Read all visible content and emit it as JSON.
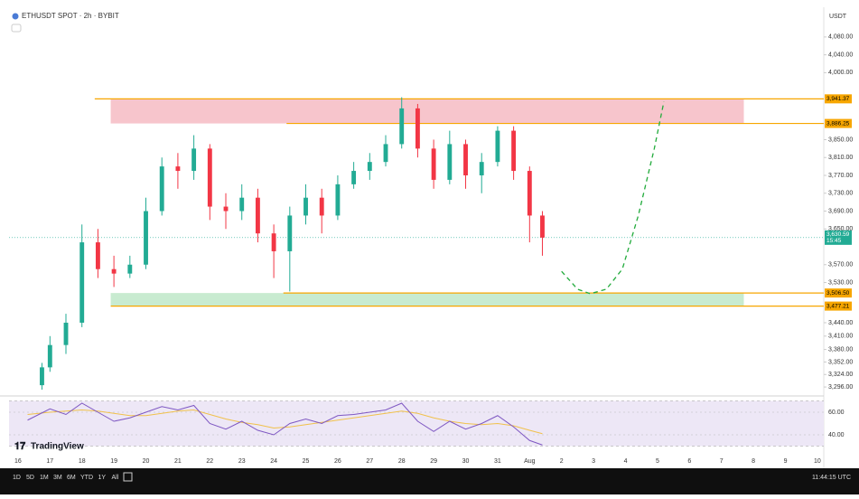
{
  "ui": {
    "symbol": "ETHUSDT SPOT · 2h · BYBIT",
    "currency": "USDT",
    "brand": "TradingView",
    "ranges": [
      "1D",
      "5D",
      "1M",
      "3M",
      "6M",
      "YTD",
      "1Y",
      "All"
    ],
    "clock": "11:44:15 UTC"
  },
  "chart_data": [
    {
      "type": "candlestick",
      "x": [
        16.75,
        17,
        17.5,
        18,
        18.5,
        19,
        19.5,
        20,
        20.5,
        21,
        21.5,
        22,
        22.5,
        23,
        23.5,
        24,
        24.5,
        25,
        25.5,
        26,
        26.5,
        27,
        27.5,
        28,
        28.5,
        29,
        29.5,
        30,
        30.5,
        31,
        31.5,
        32,
        32.4
      ],
      "open": [
        3300,
        3340,
        3390,
        3440,
        3620,
        3560,
        3550,
        3570,
        3690,
        3790,
        3780,
        3830,
        3700,
        3690,
        3720,
        3640,
        3600,
        3680,
        3720,
        3680,
        3750,
        3780,
        3800,
        3840,
        3920,
        3830,
        3760,
        3840,
        3770,
        3800,
        3870,
        3780,
        3680
      ],
      "high": [
        3350,
        3410,
        3460,
        3660,
        3650,
        3590,
        3590,
        3720,
        3810,
        3820,
        3860,
        3840,
        3730,
        3750,
        3740,
        3660,
        3700,
        3750,
        3740,
        3770,
        3800,
        3820,
        3860,
        3945,
        3930,
        3850,
        3870,
        3850,
        3820,
        3880,
        3880,
        3790,
        3690
      ],
      "low": [
        3290,
        3330,
        3370,
        3430,
        3540,
        3520,
        3540,
        3560,
        3680,
        3740,
        3760,
        3670,
        3650,
        3670,
        3620,
        3540,
        3510,
        3660,
        3640,
        3670,
        3740,
        3760,
        3790,
        3830,
        3810,
        3740,
        3750,
        3740,
        3730,
        3790,
        3760,
        3620,
        3590
      ],
      "close": [
        3340,
        3390,
        3440,
        3620,
        3560,
        3550,
        3570,
        3690,
        3790,
        3780,
        3830,
        3700,
        3690,
        3720,
        3640,
        3600,
        3680,
        3720,
        3680,
        3750,
        3780,
        3800,
        3840,
        3920,
        3830,
        3760,
        3840,
        3770,
        3800,
        3870,
        3780,
        3680,
        3630.59
      ],
      "up_color": "#22ab94",
      "down_color": "#f23645",
      "xlim": [
        15.72,
        41.2
      ],
      "ylim": [
        3280,
        4100
      ],
      "xticks": [
        16,
        17,
        18,
        19,
        20,
        21,
        22,
        23,
        24,
        25,
        26,
        27,
        28,
        29,
        30,
        31,
        {
          "value": 32,
          "label": "Aug"
        },
        {
          "value": 33,
          "label": "2"
        },
        {
          "value": 34,
          "label": "3"
        },
        {
          "value": 35,
          "label": "4"
        },
        {
          "value": 36,
          "label": "5"
        },
        {
          "value": 37,
          "label": "6"
        },
        {
          "value": 38,
          "label": "7"
        },
        {
          "value": 39,
          "label": "8"
        },
        {
          "value": 40,
          "label": "9"
        },
        {
          "value": 41,
          "label": "10"
        }
      ],
      "yticks": [
        {
          "value": 4080,
          "label": "4,080.00"
        },
        {
          "value": 4040,
          "label": "4,040.00"
        },
        {
          "value": 4000,
          "label": "4,000.00"
        },
        {
          "value": 3850,
          "label": "3,850.00"
        },
        {
          "value": 3810,
          "label": "3,810.00"
        },
        {
          "value": 3770,
          "label": "3,770.00"
        },
        {
          "value": 3730,
          "label": "3,730.00"
        },
        {
          "value": 3690,
          "label": "3,690.00"
        },
        {
          "value": 3650,
          "label": "3,650.00"
        },
        {
          "value": 3570,
          "label": "3,570.00"
        },
        {
          "value": 3530,
          "label": "3,530.00"
        },
        {
          "value": 3440,
          "label": "3,440.00"
        },
        {
          "value": 3410,
          "label": "3,410.00"
        },
        {
          "value": 3380,
          "label": "3,380.00"
        },
        {
          "value": 3352,
          "label": "3,352.00"
        },
        {
          "value": 3324,
          "label": "3,324.00"
        },
        {
          "value": 3296,
          "label": "3,296.00"
        }
      ],
      "last_price": {
        "value": 3630.59,
        "label": "3,630.59",
        "countdown": "15:45",
        "color": "#22ab94"
      },
      "levels": [
        {
          "value": 3941.37,
          "label": "3,941.37",
          "x_start": 18.4,
          "color": "#f7a600"
        },
        {
          "value": 3886.25,
          "label": "3,886.25",
          "x_start": 24.4,
          "color": "#f7a600"
        },
        {
          "value": 3506.5,
          "label": "3,506.50",
          "x_start": 24.3,
          "color": "#f7a600"
        },
        {
          "value": 3477.21,
          "label": "3,477.21",
          "x_start": 18.9,
          "color": "#f7a600"
        }
      ],
      "zones": [
        {
          "from": 3886.25,
          "to": 3941.37,
          "x": [
            18.9,
            38.7
          ],
          "color": "#f7c5cc"
        },
        {
          "from": 3477.21,
          "to": 3506.5,
          "x": [
            18.9,
            38.7
          ],
          "color": "#c8ebd0"
        }
      ],
      "projection": {
        "x": [
          33.0,
          33.5,
          33.9,
          34.4,
          34.9,
          35.4,
          35.9,
          36.2
        ],
        "values": [
          3555,
          3515,
          3505,
          3515,
          3560,
          3680,
          3830,
          3935
        ],
        "color": "#22ab3c"
      }
    },
    {
      "type": "line",
      "x": [
        16.3,
        17,
        17.5,
        18,
        18.5,
        19,
        19.5,
        20,
        20.5,
        21,
        21.5,
        22,
        22.5,
        23,
        23.5,
        24,
        24.5,
        25,
        25.5,
        26,
        26.5,
        27,
        27.5,
        28,
        28.5,
        29,
        29.5,
        30,
        30.5,
        31,
        31.5,
        32,
        32.4
      ],
      "series": [
        {
          "color": "#7e57c2",
          "values": [
            53,
            63,
            58,
            68,
            60,
            52,
            55,
            60,
            65,
            62,
            66,
            50,
            45,
            52,
            44,
            40,
            50,
            54,
            50,
            57,
            58,
            60,
            62,
            68,
            52,
            43,
            52,
            45,
            50,
            57,
            47,
            35,
            31
          ]
        },
        {
          "color": "#f0c14b",
          "values": [
            58,
            60,
            61,
            62,
            61,
            59,
            57,
            57,
            59,
            61,
            62,
            58,
            54,
            51,
            49,
            46,
            47,
            49,
            51,
            53,
            55,
            57,
            59,
            61,
            59,
            55,
            52,
            50,
            49,
            50,
            48,
            44,
            41
          ]
        }
      ],
      "xlim": [
        15.72,
        41.2
      ],
      "ylim": [
        28,
        72
      ],
      "band": [
        30,
        70
      ],
      "yticks": [
        {
          "value": 60,
          "label": "60.00"
        },
        {
          "value": 40,
          "label": "40.00"
        }
      ]
    }
  ]
}
